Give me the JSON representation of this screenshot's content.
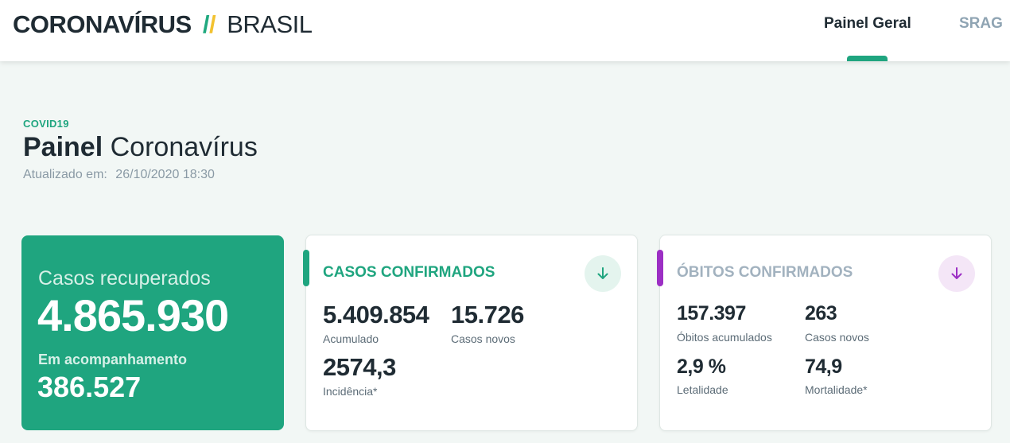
{
  "header": {
    "brand_main": "CORONAVÍRUS",
    "brand_sub": "BRASIL",
    "nav": [
      {
        "label": "Painel Geral",
        "active": true
      },
      {
        "label": "SRAG",
        "active": false
      }
    ]
  },
  "title_block": {
    "eyebrow": "COVID19",
    "title_bold": "Painel",
    "title_light": "Coronavírus",
    "updated_label": "Atualizado em:",
    "updated_value": "26/10/2020 18:30"
  },
  "recovered": {
    "label": "Casos recuperados",
    "value": "4.865.930",
    "followup_label": "Em acompanhamento",
    "followup_value": "386.527"
  },
  "cases": {
    "title": "CASOS CONFIRMADOS",
    "accumulated_value": "5.409.854",
    "accumulated_label": "Acumulado",
    "new_value": "15.726",
    "new_label": "Casos novos",
    "incidence_value": "2574,3",
    "incidence_label": "Incidência*",
    "icon": "arrow-down-icon"
  },
  "deaths": {
    "title": "ÓBITOS CONFIRMADOS",
    "accumulated_value": "157.397",
    "accumulated_label": "Óbitos acumulados",
    "new_value": "263",
    "new_label": "Casos novos",
    "lethality_value": "2,9 %",
    "lethality_label": "Letalidade",
    "mortality_value": "74,9",
    "mortality_label": "Mortalidade*",
    "icon": "arrow-down-icon"
  },
  "colors": {
    "brand_green": "#1fa57f",
    "brand_yellow": "#f2c230",
    "deaths_purple": "#9c2fc4",
    "text_dark": "#1f2b33",
    "muted": "#8a9aa5"
  }
}
